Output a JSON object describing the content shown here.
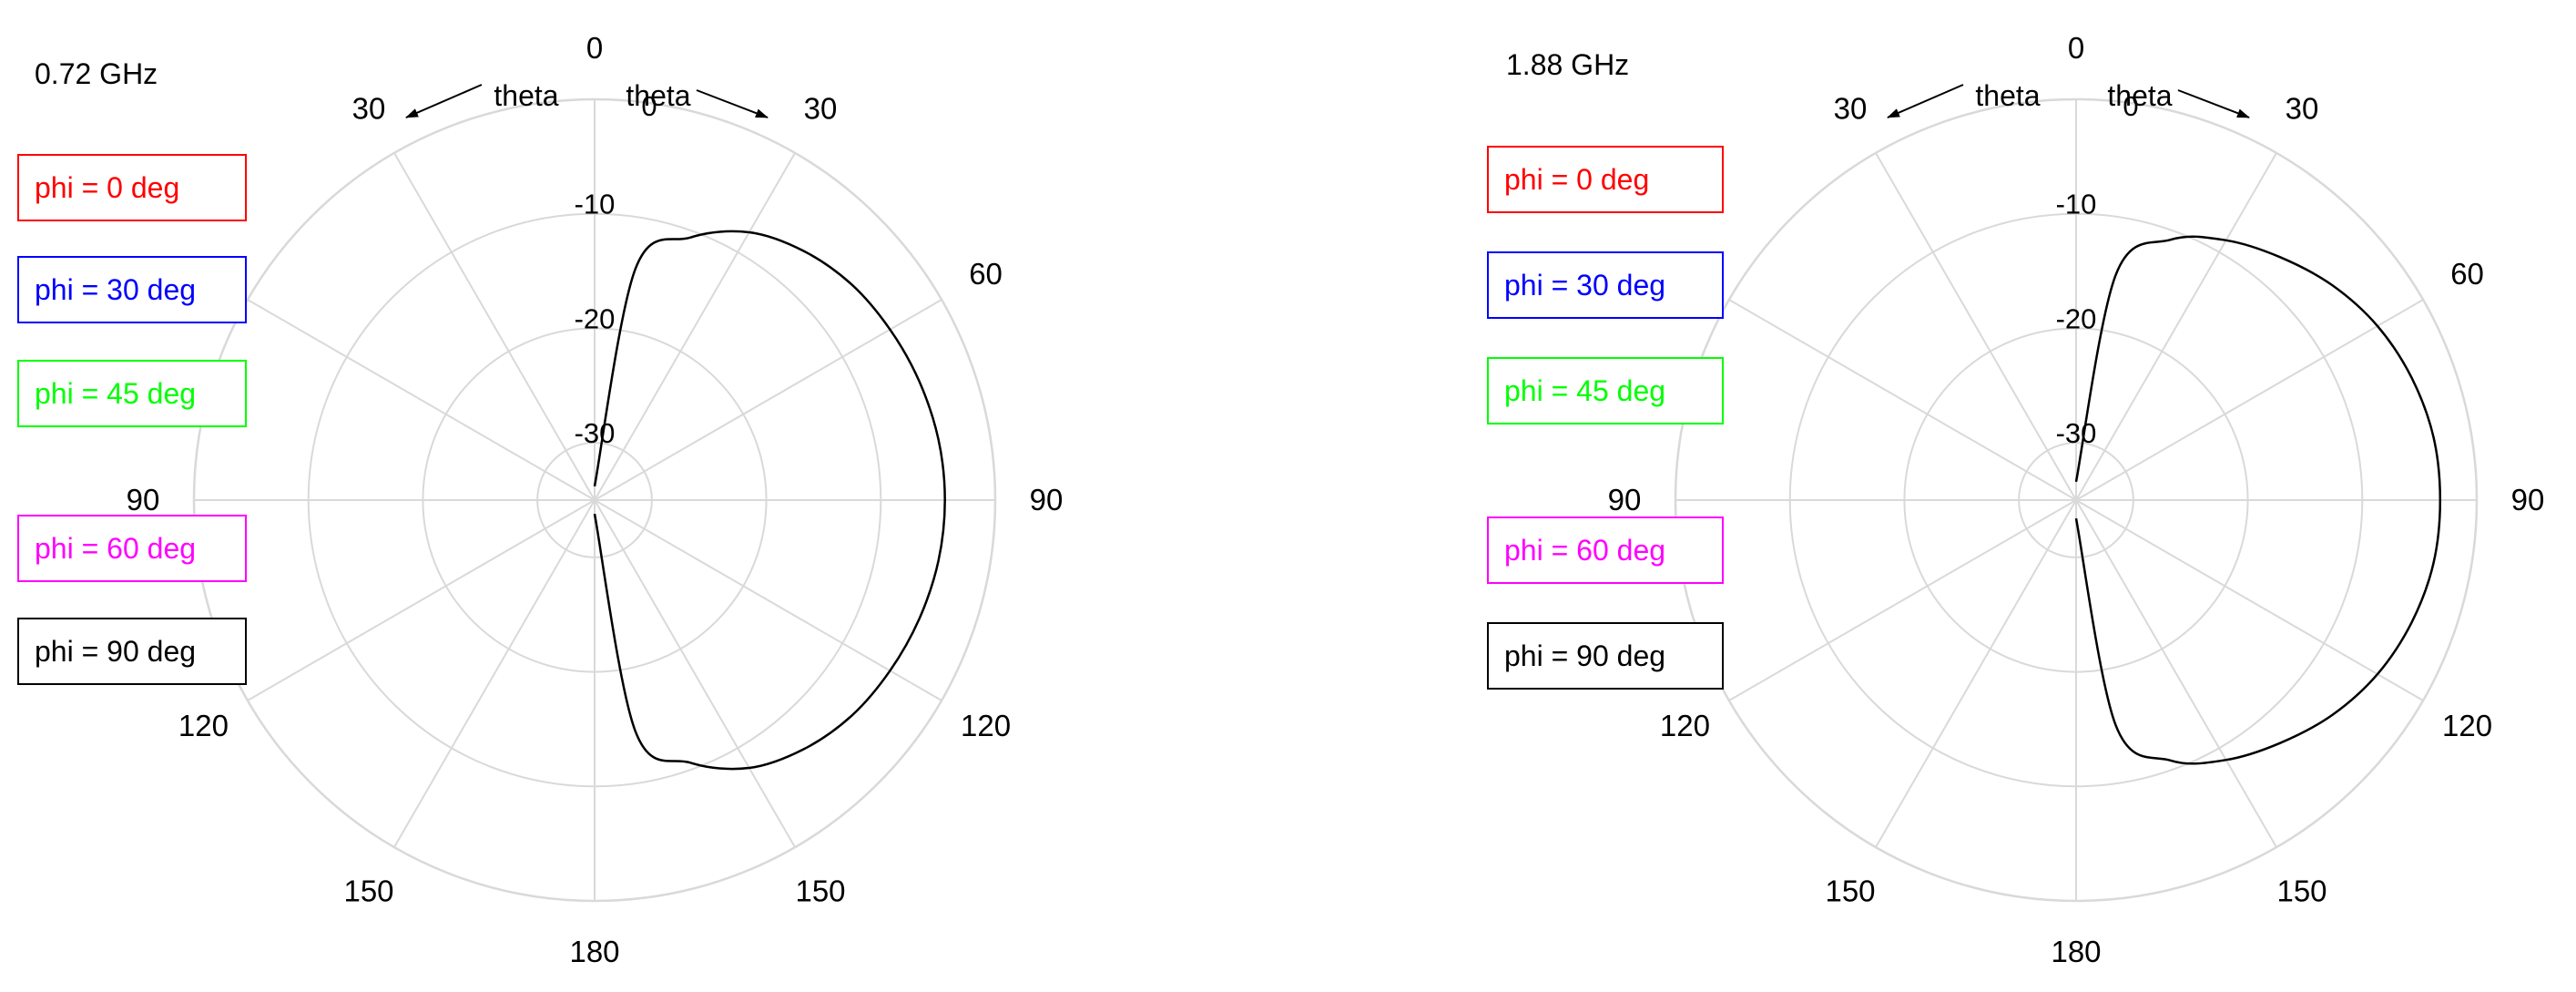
{
  "colors": {
    "grid": "#d9d9d9",
    "pattern": "#000000",
    "text": "#000000",
    "legend": [
      "#ff0000",
      "#0000ff",
      "#00ff00",
      "#ff00ff",
      "#000000"
    ]
  },
  "icons": [
    "arrow-left-icon",
    "arrow-right-icon"
  ],
  "chart_data": [
    {
      "type": "polar-line",
      "title": "0.72 GHz",
      "angle_label_left": "theta",
      "angle_label_right": "theta",
      "angle_unit": "deg",
      "angle_ticks": [
        "0",
        "30",
        "60",
        "90",
        "120",
        "150",
        "180",
        "150",
        "120",
        "90",
        "60",
        "30"
      ],
      "angle_tick_values": [
        0,
        30,
        60,
        90,
        120,
        150,
        180,
        210,
        240,
        270,
        300,
        330
      ],
      "radial_ticks": [
        "0",
        "-10",
        "-20",
        "-30"
      ],
      "radial_tick_values": [
        0,
        -10,
        -20,
        -30
      ],
      "rlim": [
        -35,
        0
      ],
      "grid": true,
      "legend_position": "left",
      "legend": [
        "phi = 0  deg",
        "phi = 30 deg",
        "phi = 45 deg",
        "phi = 60 deg",
        "phi = 90 deg"
      ],
      "series": [
        {
          "theta_deg": [
            0,
            10,
            20,
            30,
            40,
            50,
            60,
            70,
            80,
            90,
            100,
            110,
            120,
            130,
            140,
            150,
            160,
            170,
            180
          ],
          "gain_db": [
            -33.8,
            -14.5,
            -10.6,
            -8.0,
            -6.6,
            -5.7,
            -5.2,
            -4.8,
            -4.5,
            -4.4,
            -4.5,
            -4.8,
            -5.2,
            -5.7,
            -6.6,
            -8.0,
            -10.6,
            -14.5,
            -33.8
          ]
        }
      ]
    },
    {
      "type": "polar-line",
      "title": "1.88 GHz",
      "angle_label_left": "theta",
      "angle_label_right": "theta",
      "angle_unit": "deg",
      "angle_ticks": [
        "0",
        "30",
        "60",
        "90",
        "120",
        "150",
        "180",
        "150",
        "120",
        "90",
        "60",
        "30"
      ],
      "angle_tick_values": [
        0,
        30,
        60,
        90,
        120,
        150,
        180,
        210,
        240,
        270,
        300,
        330
      ],
      "radial_ticks": [
        "0",
        "-10",
        "-20",
        "-30"
      ],
      "radial_tick_values": [
        0,
        -10,
        -20,
        -30
      ],
      "rlim": [
        -35,
        0
      ],
      "grid": true,
      "legend_position": "left",
      "legend": [
        "phi = 0  deg",
        "phi = 30 deg",
        "phi = 45 deg",
        "phi = 60 deg",
        "phi = 90 deg"
      ],
      "series": [
        {
          "theta_deg": [
            0,
            10,
            20,
            30,
            40,
            50,
            60,
            70,
            80,
            90,
            100,
            110,
            120,
            130,
            140,
            150,
            160,
            170,
            180
          ],
          "gain_db": [
            -33.4,
            -15.0,
            -10.8,
            -8.8,
            -7.3,
            -5.8,
            -4.6,
            -3.8,
            -3.3,
            -3.2,
            -3.3,
            -3.8,
            -4.6,
            -5.8,
            -7.3,
            -8.8,
            -10.8,
            -15.0,
            -33.4
          ]
        }
      ]
    }
  ]
}
